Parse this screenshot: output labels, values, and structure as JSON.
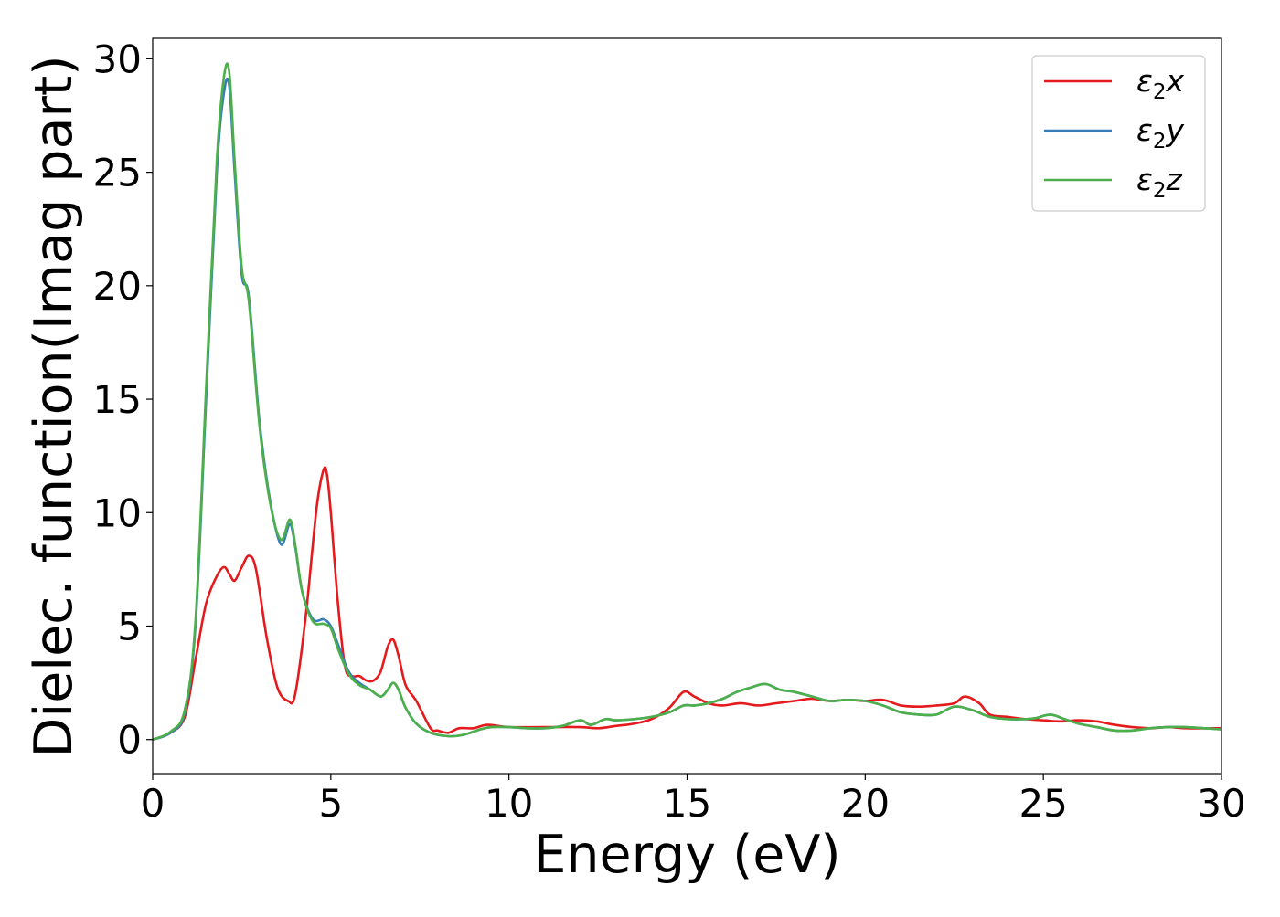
{
  "chart_data": {
    "type": "line",
    "title": "",
    "xlabel": "Energy (eV)",
    "ylabel": "Dielec. function(Imag part)",
    "xlim": [
      0,
      30
    ],
    "ylim": [
      -1.5,
      30.9
    ],
    "xticks": [
      0,
      5,
      10,
      15,
      20,
      25,
      30
    ],
    "yticks": [
      0,
      5,
      10,
      15,
      20,
      25,
      30
    ],
    "grid": false,
    "legend_position": "top-right",
    "series": [
      {
        "name": "ε2x",
        "legend_base": "ε",
        "legend_sub": "2",
        "legend_var": "x",
        "color": "#e41a1c",
        "x": [
          0,
          0.5,
          0.9,
          1.2,
          1.5,
          1.8,
          2.0,
          2.15,
          2.3,
          2.5,
          2.7,
          2.9,
          3.2,
          3.5,
          3.8,
          4.0,
          4.3,
          4.6,
          4.8,
          4.9,
          5.0,
          5.2,
          5.4,
          5.6,
          5.8,
          6.0,
          6.2,
          6.4,
          6.6,
          6.75,
          6.9,
          7.1,
          7.4,
          7.8,
          8.0,
          8.3,
          8.6,
          9.0,
          9.4,
          10.0,
          11.0,
          12.0,
          12.5,
          13.0,
          13.5,
          14.0,
          14.5,
          14.9,
          15.2,
          15.6,
          16.0,
          16.5,
          17.0,
          17.5,
          18.0,
          18.5,
          19.0,
          19.5,
          20.0,
          20.5,
          21.0,
          21.5,
          22.0,
          22.5,
          22.8,
          23.2,
          23.5,
          24.0,
          24.5,
          25.0,
          25.5,
          26.0,
          26.5,
          27.0,
          27.5,
          28.0,
          28.5,
          29.0,
          30.0
        ],
        "y": [
          0,
          0.3,
          1.0,
          3.5,
          6.0,
          7.2,
          7.6,
          7.3,
          7.0,
          7.6,
          8.1,
          7.5,
          4.5,
          2.3,
          1.7,
          2.0,
          5.5,
          10.2,
          11.9,
          11.6,
          10.0,
          6.0,
          3.2,
          2.8,
          2.8,
          2.6,
          2.6,
          3.0,
          4.1,
          4.4,
          3.7,
          2.4,
          1.7,
          0.5,
          0.4,
          0.3,
          0.5,
          0.5,
          0.65,
          0.55,
          0.55,
          0.55,
          0.5,
          0.6,
          0.7,
          0.9,
          1.4,
          2.1,
          1.9,
          1.6,
          1.5,
          1.6,
          1.5,
          1.6,
          1.7,
          1.8,
          1.7,
          1.75,
          1.7,
          1.75,
          1.5,
          1.45,
          1.5,
          1.6,
          1.9,
          1.6,
          1.1,
          1.0,
          0.9,
          0.85,
          0.8,
          0.85,
          0.8,
          0.65,
          0.55,
          0.5,
          0.55,
          0.5,
          0.5
        ]
      },
      {
        "name": "ε2y",
        "legend_base": "ε",
        "legend_sub": "2",
        "legend_var": "y",
        "color": "#377eb8",
        "x": [
          0,
          0.5,
          0.9,
          1.2,
          1.5,
          1.8,
          2.0,
          2.15,
          2.3,
          2.5,
          2.7,
          3.0,
          3.3,
          3.6,
          3.85,
          4.0,
          4.2,
          4.5,
          4.8,
          5.0,
          5.2,
          5.5,
          5.8,
          6.1,
          6.4,
          6.6,
          6.75,
          6.9,
          7.1,
          7.4,
          7.8,
          8.3,
          8.7,
          9.2,
          9.5,
          10.0,
          10.5,
          11.0,
          11.5,
          12.0,
          12.3,
          12.7,
          13.0,
          13.5,
          14.0,
          14.5,
          14.9,
          15.2,
          15.6,
          16.0,
          16.4,
          16.8,
          17.2,
          17.6,
          18.0,
          18.5,
          19.0,
          19.5,
          20.0,
          20.5,
          21.0,
          21.5,
          22.0,
          22.5,
          23.0,
          23.5,
          24.0,
          24.5,
          24.8,
          25.2,
          25.6,
          26.0,
          26.5,
          27.0,
          27.5,
          28.0,
          28.5,
          29.0,
          30.0
        ],
        "y": [
          0,
          0.3,
          1.2,
          5.0,
          15.0,
          25.0,
          28.5,
          28.8,
          25.0,
          20.5,
          19.5,
          14.0,
          10.5,
          8.6,
          9.5,
          8.5,
          6.5,
          5.3,
          5.3,
          5.0,
          4.2,
          3.0,
          2.5,
          2.2,
          1.9,
          2.2,
          2.5,
          2.2,
          1.4,
          0.7,
          0.3,
          0.15,
          0.2,
          0.45,
          0.55,
          0.55,
          0.5,
          0.5,
          0.6,
          0.85,
          0.65,
          0.9,
          0.85,
          0.9,
          1.0,
          1.2,
          1.5,
          1.5,
          1.6,
          1.8,
          2.1,
          2.3,
          2.45,
          2.2,
          2.1,
          1.9,
          1.7,
          1.75,
          1.7,
          1.5,
          1.2,
          1.1,
          1.1,
          1.45,
          1.3,
          1.0,
          0.9,
          0.9,
          0.95,
          1.1,
          0.9,
          0.7,
          0.55,
          0.4,
          0.4,
          0.5,
          0.55,
          0.55,
          0.45
        ]
      },
      {
        "name": "ε2z",
        "legend_base": "ε",
        "legend_sub": "2",
        "legend_var": "z",
        "color": "#4daf4a",
        "x": [
          0,
          0.5,
          0.9,
          1.2,
          1.5,
          1.8,
          2.0,
          2.15,
          2.3,
          2.5,
          2.7,
          3.0,
          3.3,
          3.6,
          3.85,
          4.0,
          4.2,
          4.5,
          4.8,
          5.0,
          5.2,
          5.5,
          5.8,
          6.1,
          6.4,
          6.6,
          6.75,
          6.9,
          7.1,
          7.4,
          7.8,
          8.3,
          8.7,
          9.2,
          9.5,
          10.0,
          10.5,
          11.0,
          11.5,
          12.0,
          12.3,
          12.7,
          13.0,
          13.5,
          14.0,
          14.5,
          14.9,
          15.2,
          15.6,
          16.0,
          16.4,
          16.8,
          17.2,
          17.6,
          18.0,
          18.5,
          19.0,
          19.5,
          20.0,
          20.5,
          21.0,
          21.5,
          22.0,
          22.5,
          23.0,
          23.5,
          24.0,
          24.5,
          24.8,
          25.2,
          25.6,
          26.0,
          26.5,
          27.0,
          27.5,
          28.0,
          28.5,
          29.0,
          30.0
        ],
        "y": [
          0,
          0.35,
          1.3,
          5.2,
          15.5,
          25.5,
          29.2,
          29.4,
          25.5,
          20.8,
          19.3,
          13.8,
          10.4,
          8.8,
          9.7,
          8.6,
          6.5,
          5.2,
          5.1,
          4.9,
          4.0,
          2.9,
          2.4,
          2.2,
          1.9,
          2.2,
          2.5,
          2.2,
          1.4,
          0.7,
          0.3,
          0.15,
          0.2,
          0.45,
          0.55,
          0.55,
          0.5,
          0.5,
          0.6,
          0.85,
          0.65,
          0.9,
          0.85,
          0.9,
          1.0,
          1.2,
          1.5,
          1.5,
          1.6,
          1.8,
          2.1,
          2.3,
          2.45,
          2.2,
          2.1,
          1.9,
          1.7,
          1.75,
          1.7,
          1.5,
          1.2,
          1.1,
          1.1,
          1.45,
          1.3,
          1.0,
          0.9,
          0.9,
          0.95,
          1.1,
          0.9,
          0.7,
          0.55,
          0.4,
          0.4,
          0.5,
          0.55,
          0.55,
          0.45
        ]
      }
    ]
  }
}
